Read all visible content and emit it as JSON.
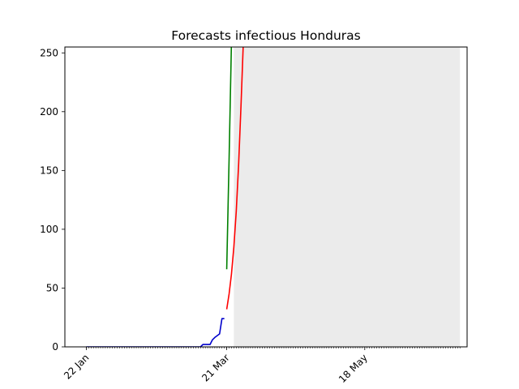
{
  "chart_data": {
    "type": "line",
    "title": "Forecasts infectious Honduras",
    "xlabel": "",
    "ylabel": "",
    "ylim": [
      0,
      255
    ],
    "yticks": [
      0,
      50,
      100,
      150,
      200,
      250
    ],
    "xrange": [
      "2020-01-13",
      "2020-06-30"
    ],
    "xtick_labels": [
      {
        "date": "2020-01-22",
        "label": "22 Jan"
      },
      {
        "date": "2020-03-21",
        "label": "21 Mar"
      },
      {
        "date": "2020-05-18",
        "label": "18 May"
      }
    ],
    "minor_tick_span": [
      "2020-01-22",
      "2020-06-27"
    ],
    "shaded_region": {
      "start": "2020-03-24",
      "end": "2020-06-27",
      "color": "#ebebeb"
    },
    "grid": false,
    "series": [
      {
        "color": "#0000cc",
        "points": [
          [
            "2020-01-22",
            0
          ],
          [
            "2020-02-15",
            0
          ],
          [
            "2020-03-09",
            0
          ],
          [
            "2020-03-10",
            0
          ],
          [
            "2020-03-11",
            2
          ],
          [
            "2020-03-13",
            2
          ],
          [
            "2020-03-14",
            2
          ],
          [
            "2020-03-15",
            6
          ],
          [
            "2020-03-16",
            8
          ],
          [
            "2020-03-18",
            11
          ],
          [
            "2020-03-19",
            24
          ],
          [
            "2020-03-20",
            24
          ]
        ]
      },
      {
        "color": "#ff0000",
        "points": [
          [
            "2020-03-21",
            32
          ],
          [
            "2020-03-22",
            45
          ],
          [
            "2020-03-23",
            62
          ],
          [
            "2020-03-24",
            85
          ],
          [
            "2020-03-25",
            115
          ],
          [
            "2020-03-26",
            155
          ],
          [
            "2020-03-27",
            205
          ],
          [
            "2020-03-28",
            260
          ]
        ]
      },
      {
        "color": "#008000",
        "points": [
          [
            "2020-03-21",
            66
          ],
          [
            "2020-03-22",
            160
          ],
          [
            "2020-03-23",
            260
          ]
        ]
      }
    ]
  }
}
